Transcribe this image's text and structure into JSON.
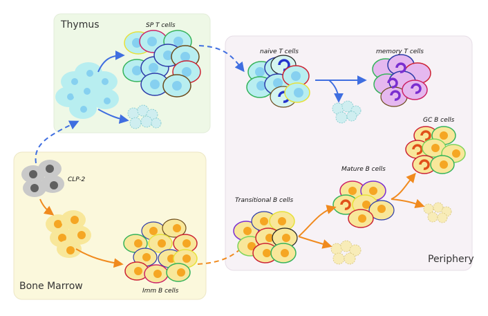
{
  "panels": {
    "thymus": "Thymus",
    "periphery": "Periphery",
    "bone_marrow": "Bone Marrow"
  },
  "labels": {
    "sp_t": "SP T cells",
    "naive_t": "naive T cells",
    "memory_t": "memory T cells",
    "gc_b": "GC B cells",
    "mature_b": "Mature B cells",
    "transitional_b": "Transitional B cells",
    "clp2": "CLP-2",
    "imm_b": "Imm B cells"
  },
  "colors": {
    "thymus_bg": "#eef8e6",
    "periphery_bg": "#f7f2f6",
    "marrow_bg": "#fbf8dc",
    "t_cell": "#b8eef0",
    "t_nucleus": "#86d0f0",
    "b_cell": "#f8e79a",
    "b_nucleus": "#f5a623",
    "memory_cell": "#e5b8ef",
    "progenitor": "#c9c9c9",
    "arrow_t": "#3f6ee0",
    "arrow_b": "#f08a1e"
  }
}
